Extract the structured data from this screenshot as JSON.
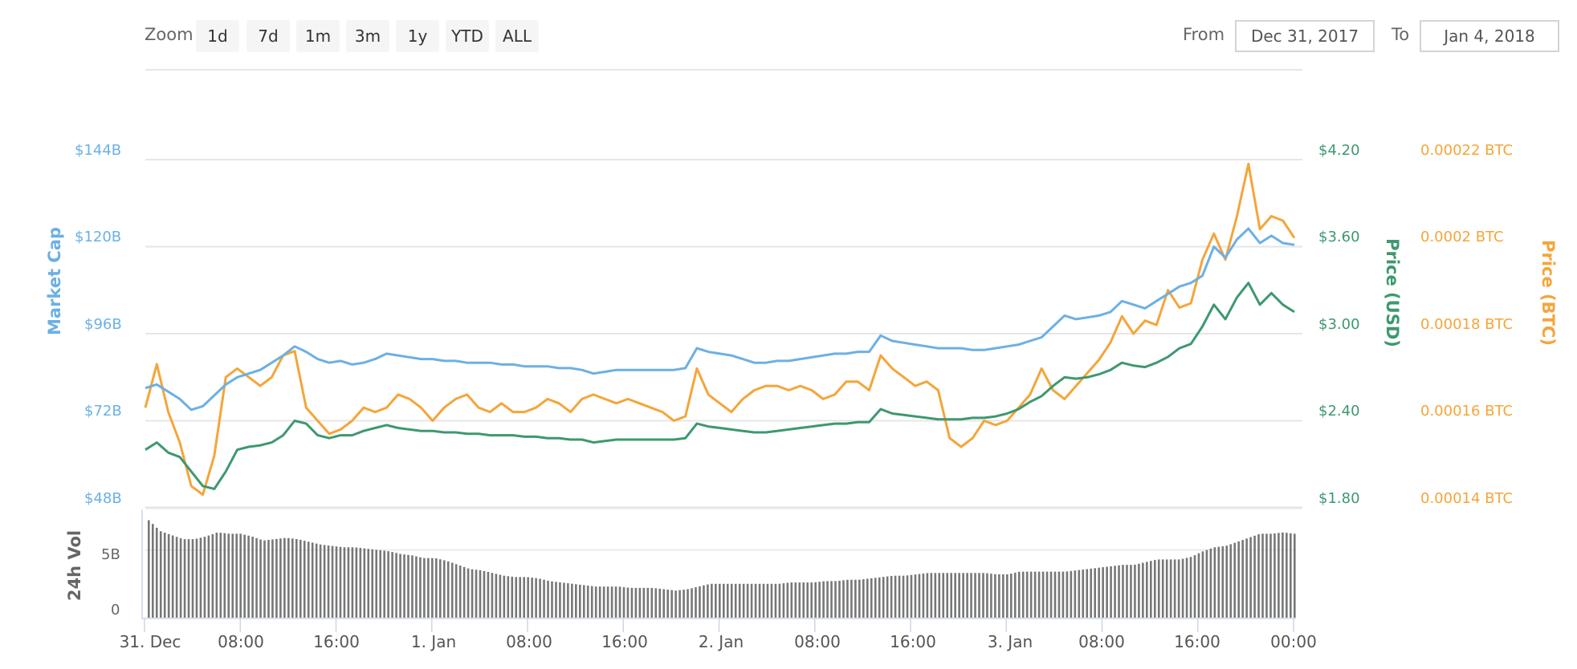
{
  "toolbar": {
    "zoom_label": "Zoom",
    "zoom_buttons": [
      "1d",
      "7d",
      "1m",
      "3m",
      "1y",
      "YTD",
      "ALL"
    ],
    "from_label": "From",
    "from_value": "Dec 31, 2017",
    "to_label": "To",
    "to_value": "Jan 4, 2018"
  },
  "colors": {
    "market_cap": "#6cb0e4",
    "price_usd": "#3e9870",
    "price_btc": "#f4a53a",
    "volume": "#777777",
    "grid": "#e6e6e6",
    "axis_text": "#666666"
  },
  "axes": {
    "market_cap": {
      "title": "Market Cap",
      "ticks": [
        "$144B",
        "$120B",
        "$96B",
        "$72B",
        "$48B"
      ]
    },
    "price_usd": {
      "title": "Price (USD)",
      "ticks": [
        "$4.20",
        "$3.60",
        "$3.00",
        "$2.40",
        "$1.80"
      ]
    },
    "price_btc": {
      "title": "Price (BTC)",
      "ticks": [
        "0.00022 BTC",
        "0.0002 BTC",
        "0.00018 BTC",
        "0.00016 BTC",
        "0.00014 BTC"
      ]
    },
    "volume": {
      "title": "24h Vol",
      "ticks": [
        "5B",
        "0"
      ]
    },
    "x_ticks": [
      "31. Dec",
      "08:00",
      "16:00",
      "1. Jan",
      "08:00",
      "16:00",
      "2. Jan",
      "08:00",
      "16:00",
      "3. Jan",
      "08:00",
      "16:00",
      "00:00"
    ]
  },
  "chart_data": {
    "type": "line",
    "title": "",
    "xlabel": "",
    "x_range": [
      "Dec 31, 2017 00:00",
      "Jan 4, 2018 00:00"
    ],
    "x_interval_hours": 1,
    "x_tick_labels": [
      "31. Dec",
      "08:00",
      "16:00",
      "1. Jan",
      "08:00",
      "16:00",
      "2. Jan",
      "08:00",
      "16:00",
      "3. Jan",
      "08:00",
      "16:00",
      "00:00"
    ],
    "grid": true,
    "legend": false,
    "series": [
      {
        "name": "Market Cap",
        "axis": "left",
        "unit": "USD billions",
        "ylim": [
          48,
          144
        ],
        "values": [
          81,
          82,
          80,
          78,
          75,
          76,
          79,
          82,
          84,
          85,
          86,
          88,
          90,
          92.5,
          91,
          89,
          88,
          88.5,
          87.5,
          88,
          89,
          90.5,
          90,
          89.5,
          89,
          89,
          88.5,
          88.5,
          88,
          88,
          88,
          87.5,
          87.5,
          87,
          87,
          87,
          86.5,
          86.5,
          86,
          85,
          85.5,
          86,
          86,
          86,
          86,
          86,
          86,
          86.5,
          92,
          91,
          90.5,
          90,
          89,
          88,
          88,
          88.5,
          88.5,
          89,
          89.5,
          90,
          90.5,
          90.5,
          91,
          91,
          95.5,
          94,
          93.5,
          93,
          92.5,
          92,
          92,
          92,
          91.5,
          91.5,
          92,
          92.5,
          93,
          94,
          95,
          98,
          101,
          100,
          100.5,
          101,
          102,
          105,
          104,
          103,
          105,
          107,
          109,
          110,
          112,
          120,
          117,
          122,
          125,
          121,
          123,
          121,
          120.5
        ]
      },
      {
        "name": "Price (USD)",
        "axis": "right",
        "unit": "USD",
        "ylim": [
          1.8,
          4.2
        ],
        "values": [
          2.2,
          2.25,
          2.18,
          2.15,
          2.05,
          1.95,
          1.93,
          2.05,
          2.2,
          2.22,
          2.23,
          2.25,
          2.3,
          2.4,
          2.38,
          2.3,
          2.28,
          2.3,
          2.3,
          2.33,
          2.35,
          2.37,
          2.35,
          2.34,
          2.33,
          2.33,
          2.32,
          2.32,
          2.31,
          2.31,
          2.3,
          2.3,
          2.3,
          2.29,
          2.29,
          2.28,
          2.28,
          2.27,
          2.27,
          2.25,
          2.26,
          2.27,
          2.27,
          2.27,
          2.27,
          2.27,
          2.27,
          2.28,
          2.38,
          2.36,
          2.35,
          2.34,
          2.33,
          2.32,
          2.32,
          2.33,
          2.34,
          2.35,
          2.36,
          2.37,
          2.38,
          2.38,
          2.39,
          2.39,
          2.48,
          2.45,
          2.44,
          2.43,
          2.42,
          2.41,
          2.41,
          2.41,
          2.42,
          2.42,
          2.43,
          2.45,
          2.48,
          2.53,
          2.57,
          2.64,
          2.7,
          2.69,
          2.7,
          2.72,
          2.75,
          2.8,
          2.78,
          2.77,
          2.8,
          2.84,
          2.9,
          2.93,
          3.05,
          3.2,
          3.1,
          3.25,
          3.35,
          3.2,
          3.28,
          3.2,
          3.15
        ]
      },
      {
        "name": "Price (BTC)",
        "axis": "right",
        "unit": "BTC",
        "ylim": [
          0.00014,
          0.00022
        ],
        "values": [
          0.000163,
          0.000173,
          0.000162,
          0.000155,
          0.000145,
          0.000143,
          0.000152,
          0.00017,
          0.000172,
          0.00017,
          0.000168,
          0.00017,
          0.000175,
          0.000176,
          0.000163,
          0.00016,
          0.000157,
          0.000158,
          0.00016,
          0.000163,
          0.000162,
          0.000163,
          0.000166,
          0.000165,
          0.000163,
          0.00016,
          0.000163,
          0.000165,
          0.000166,
          0.000163,
          0.000162,
          0.000164,
          0.000162,
          0.000162,
          0.000163,
          0.000165,
          0.000164,
          0.000162,
          0.000165,
          0.000166,
          0.000165,
          0.000164,
          0.000165,
          0.000164,
          0.000163,
          0.000162,
          0.00016,
          0.000161,
          0.000172,
          0.000166,
          0.000164,
          0.000162,
          0.000165,
          0.000167,
          0.000168,
          0.000168,
          0.000167,
          0.000168,
          0.000167,
          0.000165,
          0.000166,
          0.000169,
          0.000169,
          0.000167,
          0.000175,
          0.000172,
          0.00017,
          0.000168,
          0.000169,
          0.000167,
          0.000156,
          0.000154,
          0.000156,
          0.00016,
          0.000159,
          0.00016,
          0.000163,
          0.000166,
          0.000172,
          0.000167,
          0.000165,
          0.000168,
          0.000171,
          0.000174,
          0.000178,
          0.000184,
          0.00018,
          0.000183,
          0.000182,
          0.00019,
          0.000186,
          0.000187,
          0.000197,
          0.000203,
          0.000197,
          0.000207,
          0.000219,
          0.000204,
          0.000207,
          0.000206,
          0.000202
        ]
      },
      {
        "name": "24h Vol",
        "type": "bar",
        "unit": "USD billions",
        "ylim": [
          0,
          8
        ],
        "values": [
          7.2,
          6.4,
          6.1,
          5.8,
          5.8,
          6.0,
          6.3,
          6.2,
          6.2,
          6.0,
          5.7,
          5.8,
          5.9,
          5.8,
          5.6,
          5.4,
          5.3,
          5.2,
          5.2,
          5.1,
          5.0,
          4.9,
          4.7,
          4.6,
          4.4,
          4.4,
          4.2,
          3.9,
          3.6,
          3.5,
          3.3,
          3.1,
          3.0,
          3.0,
          2.9,
          2.7,
          2.6,
          2.5,
          2.4,
          2.3,
          2.3,
          2.3,
          2.2,
          2.2,
          2.2,
          2.1,
          2.0,
          2.1,
          2.3,
          2.5,
          2.5,
          2.5,
          2.5,
          2.5,
          2.5,
          2.5,
          2.6,
          2.6,
          2.6,
          2.7,
          2.7,
          2.8,
          2.8,
          2.9,
          3.0,
          3.1,
          3.1,
          3.2,
          3.3,
          3.3,
          3.3,
          3.3,
          3.3,
          3.3,
          3.2,
          3.2,
          3.4,
          3.4,
          3.4,
          3.4,
          3.4,
          3.5,
          3.6,
          3.7,
          3.8,
          3.9,
          3.9,
          4.1,
          4.3,
          4.3,
          4.3,
          4.5,
          4.9,
          5.2,
          5.3,
          5.6,
          5.9,
          6.2,
          6.2,
          6.3,
          6.2
        ]
      }
    ]
  }
}
